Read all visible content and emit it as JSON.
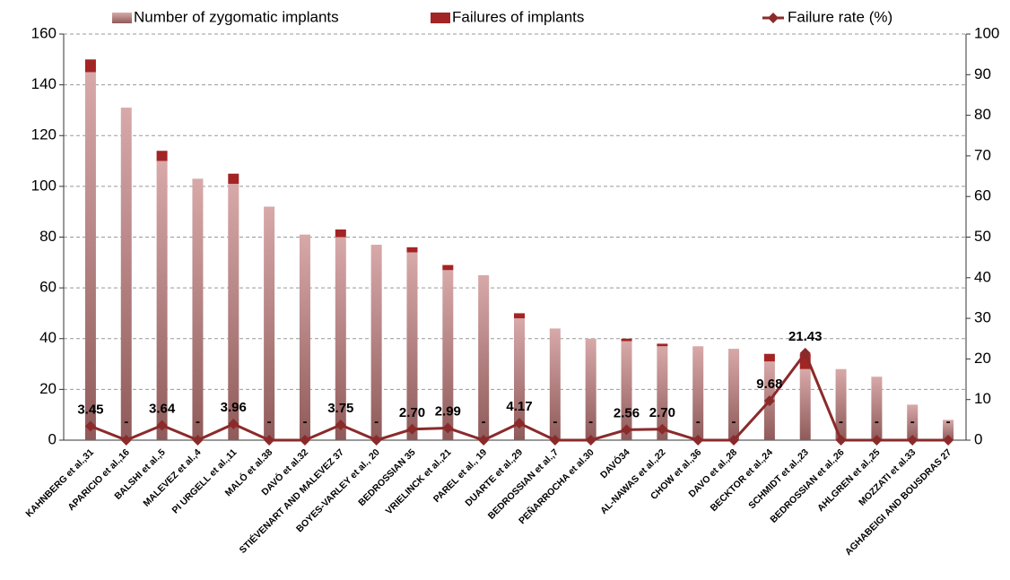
{
  "chart_data": {
    "type": "bar-line",
    "categories": [
      "KAHNBERG et al.,31",
      "APARICIO et al.,16",
      "BALSHI et al.,5",
      "MALEVEZ et al.,4",
      "PI URGELL et al.,11",
      "MALÓ et al.38",
      "DAVÓ et al.32",
      "STIÉVENART AND MALEVEZ 37",
      "BOYES-VARLEY et al., 20",
      "BEDROSSIAN 35",
      "VRIELINCK et al.,21",
      "PAREL et al., 19",
      "DUARTE et al.,29",
      "BEDROSSIAN et al.,7",
      "PEÑARROCHA et al.30",
      "DAVÓ34",
      "AL-NAWAS et al.,22",
      "CHOW et al.,36",
      "DAVO et al.,28",
      "BECKTOR et al.,24",
      "SCHMIDT et al.,23",
      "BEDROSSIAN et al.,26",
      "AHLGREN et al.,25",
      "MOZZATI et al.33",
      "AGHABEIGI AND BOUSDRAS 27"
    ],
    "series": [
      {
        "name": "Number of zygomatic implants",
        "color": "#c48f8f",
        "values": [
          145,
          131,
          110,
          103,
          101,
          92,
          81,
          80,
          77,
          74,
          67,
          65,
          48,
          44,
          40,
          39,
          37,
          37,
          36,
          31,
          28,
          28,
          25,
          14,
          8
        ]
      },
      {
        "name": "Failures of implants",
        "color": "#a32424",
        "values": [
          5,
          0,
          4,
          0,
          4,
          0,
          0,
          3,
          0,
          2,
          2,
          0,
          2,
          0,
          0,
          1,
          1,
          0,
          0,
          3,
          6,
          0,
          0,
          0,
          0
        ]
      },
      {
        "name": "Failure rate (%)",
        "color": "#8b2a2a",
        "axis": "y2",
        "values": [
          3.45,
          0,
          3.64,
          0,
          3.96,
          0,
          0,
          3.75,
          0,
          2.7,
          2.99,
          0,
          4.17,
          0,
          0,
          2.56,
          2.7,
          0,
          0,
          9.68,
          21.43,
          0,
          0,
          0,
          0
        ],
        "value_labels": [
          "3.45",
          "-",
          "3.64",
          "-",
          "3.96",
          "-",
          "-",
          "3.75",
          "-",
          "2.70",
          "2.99",
          "-",
          "4.17",
          "-",
          "-",
          "2.56",
          "2.70",
          "-",
          "-",
          "9.68",
          "21.43",
          "-",
          "-",
          "-",
          "-"
        ]
      }
    ],
    "ylim": [
      0,
      160
    ],
    "yticks": [
      0,
      20,
      40,
      60,
      80,
      100,
      120,
      140,
      160
    ],
    "y2lim": [
      0,
      100
    ],
    "y2ticks": [
      0,
      10,
      20,
      30,
      40,
      50,
      60,
      70,
      80,
      90,
      100
    ],
    "grid": true
  }
}
